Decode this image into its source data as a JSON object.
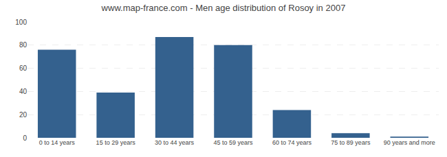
{
  "chart_data": {
    "type": "bar",
    "title": "www.map-france.com - Men age distribution of Rosoy in 2007",
    "categories": [
      "0 to 14 years",
      "15 to 29 years",
      "30 to 44 years",
      "45 to 59 years",
      "60 to 74 years",
      "75 to 89 years",
      "90 years and more"
    ],
    "values": [
      76,
      39,
      87,
      80,
      24,
      4,
      1
    ],
    "color": "#34618e",
    "ylim": [
      0,
      100
    ],
    "yticks": [
      0,
      20,
      40,
      60,
      80,
      100
    ],
    "grid": true
  }
}
